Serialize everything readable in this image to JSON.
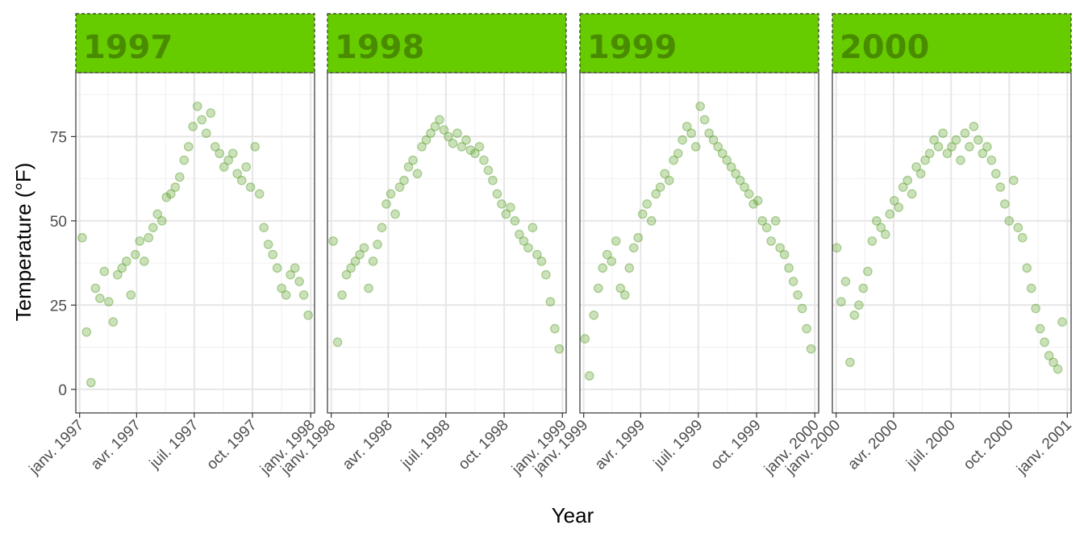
{
  "chart_data": {
    "type": "scatter",
    "facets": [
      "1997",
      "1998",
      "1999",
      "2000"
    ],
    "xlabel": "Year",
    "ylabel": "Temperature (°F)",
    "ylim": [
      -7,
      94
    ],
    "y_ticks": [
      0,
      25,
      50,
      75
    ],
    "x_tick_labels": [
      [
        "janv. 1997",
        "avr. 1997",
        "juil. 1997",
        "oct. 1997",
        "janv. 1998"
      ],
      [
        "janv. 1998",
        "avr. 1998",
        "juil. 1998",
        "oct. 1998",
        "janv. 1999"
      ],
      [
        "janv. 1999",
        "avr. 1999",
        "juil. 1999",
        "oct. 1999",
        "janv. 2000"
      ],
      [
        "janv. 2000",
        "avr. 2000",
        "juil. 2000",
        "oct. 2000",
        "janv. 2001"
      ]
    ],
    "grid": true,
    "strip_color": "#66cc00",
    "strip_text_color": "#4a8c00",
    "point_color": "#4f9a1c",
    "point_alpha": 0.3,
    "series": [
      {
        "facet": "1997",
        "x": [
          "1997-01-05",
          "1997-01-12",
          "1997-01-19",
          "1997-01-26",
          "1997-02-02",
          "1997-02-09",
          "1997-02-16",
          "1997-02-23",
          "1997-03-02",
          "1997-03-09",
          "1997-03-16",
          "1997-03-23",
          "1997-03-30",
          "1997-04-06",
          "1997-04-13",
          "1997-04-20",
          "1997-04-27",
          "1997-05-04",
          "1997-05-11",
          "1997-05-18",
          "1997-05-25",
          "1997-06-01",
          "1997-06-08",
          "1997-06-15",
          "1997-06-22",
          "1997-06-29",
          "1997-07-06",
          "1997-07-13",
          "1997-07-20",
          "1997-07-27",
          "1997-08-03",
          "1997-08-10",
          "1997-08-17",
          "1997-08-24",
          "1997-08-31",
          "1997-09-07",
          "1997-09-14",
          "1997-09-21",
          "1997-09-28",
          "1997-10-05",
          "1997-10-12",
          "1997-10-19",
          "1997-10-26",
          "1997-11-02",
          "1997-11-09",
          "1997-11-16",
          "1997-11-23",
          "1997-11-30",
          "1997-12-07",
          "1997-12-14",
          "1997-12-21",
          "1997-12-28"
        ],
        "y": [
          45,
          17,
          2,
          30,
          27,
          35,
          26,
          20,
          34,
          36,
          38,
          28,
          40,
          44,
          38,
          45,
          48,
          52,
          50,
          57,
          58,
          60,
          63,
          68,
          72,
          78,
          84,
          80,
          76,
          82,
          72,
          70,
          66,
          68,
          70,
          64,
          62,
          66,
          60,
          72,
          58,
          48,
          43,
          40,
          36,
          30,
          28,
          34,
          36,
          32,
          28,
          22
        ]
      },
      {
        "facet": "1998",
        "x": [
          "1998-01-04",
          "1998-01-11",
          "1998-01-18",
          "1998-01-25",
          "1998-02-01",
          "1998-02-08",
          "1998-02-15",
          "1998-02-22",
          "1998-03-01",
          "1998-03-08",
          "1998-03-15",
          "1998-03-22",
          "1998-03-29",
          "1998-04-05",
          "1998-04-12",
          "1998-04-19",
          "1998-04-26",
          "1998-05-03",
          "1998-05-10",
          "1998-05-17",
          "1998-05-24",
          "1998-05-31",
          "1998-06-07",
          "1998-06-14",
          "1998-06-21",
          "1998-06-28",
          "1998-07-05",
          "1998-07-12",
          "1998-07-19",
          "1998-07-26",
          "1998-08-02",
          "1998-08-09",
          "1998-08-16",
          "1998-08-23",
          "1998-08-30",
          "1998-09-06",
          "1998-09-13",
          "1998-09-20",
          "1998-09-27",
          "1998-10-04",
          "1998-10-11",
          "1998-10-18",
          "1998-10-25",
          "1998-11-01",
          "1998-11-08",
          "1998-11-15",
          "1998-11-22",
          "1998-11-29",
          "1998-12-06",
          "1998-12-13",
          "1998-12-20",
          "1998-12-27"
        ],
        "y": [
          44,
          14,
          28,
          34,
          36,
          38,
          40,
          42,
          30,
          38,
          43,
          48,
          55,
          58,
          52,
          60,
          62,
          66,
          68,
          64,
          72,
          74,
          76,
          78,
          80,
          77,
          75,
          73,
          76,
          72,
          74,
          71,
          70,
          72,
          68,
          65,
          62,
          58,
          55,
          52,
          54,
          50,
          46,
          44,
          42,
          48,
          40,
          38,
          34,
          26,
          18,
          12
        ]
      },
      {
        "facet": "1999",
        "x": [
          "1999-01-03",
          "1999-01-10",
          "1999-01-17",
          "1999-01-24",
          "1999-01-31",
          "1999-02-07",
          "1999-02-14",
          "1999-02-21",
          "1999-02-28",
          "1999-03-07",
          "1999-03-14",
          "1999-03-21",
          "1999-03-28",
          "1999-04-04",
          "1999-04-11",
          "1999-04-18",
          "1999-04-25",
          "1999-05-02",
          "1999-05-09",
          "1999-05-16",
          "1999-05-23",
          "1999-05-30",
          "1999-06-06",
          "1999-06-13",
          "1999-06-20",
          "1999-06-27",
          "1999-07-04",
          "1999-07-11",
          "1999-07-18",
          "1999-07-25",
          "1999-08-01",
          "1999-08-08",
          "1999-08-15",
          "1999-08-22",
          "1999-08-29",
          "1999-09-05",
          "1999-09-12",
          "1999-09-19",
          "1999-09-26",
          "1999-10-03",
          "1999-10-10",
          "1999-10-17",
          "1999-10-24",
          "1999-10-31",
          "1999-11-07",
          "1999-11-14",
          "1999-11-21",
          "1999-11-28",
          "1999-12-05",
          "1999-12-12",
          "1999-12-19",
          "1999-12-26"
        ],
        "y": [
          15,
          4,
          22,
          30,
          36,
          40,
          38,
          44,
          30,
          28,
          36,
          42,
          45,
          52,
          55,
          50,
          58,
          60,
          64,
          62,
          68,
          70,
          74,
          78,
          76,
          72,
          84,
          80,
          76,
          74,
          72,
          70,
          68,
          66,
          64,
          62,
          60,
          58,
          55,
          56,
          50,
          48,
          44,
          50,
          42,
          40,
          36,
          32,
          28,
          24,
          18,
          12
        ]
      },
      {
        "facet": "2000",
        "x": [
          "2000-01-02",
          "2000-01-09",
          "2000-01-16",
          "2000-01-23",
          "2000-01-30",
          "2000-02-06",
          "2000-02-13",
          "2000-02-20",
          "2000-02-27",
          "2000-03-05",
          "2000-03-12",
          "2000-03-19",
          "2000-03-26",
          "2000-04-02",
          "2000-04-09",
          "2000-04-16",
          "2000-04-23",
          "2000-04-30",
          "2000-05-07",
          "2000-05-14",
          "2000-05-21",
          "2000-05-28",
          "2000-06-04",
          "2000-06-11",
          "2000-06-18",
          "2000-06-25",
          "2000-07-02",
          "2000-07-09",
          "2000-07-16",
          "2000-07-23",
          "2000-07-30",
          "2000-08-06",
          "2000-08-13",
          "2000-08-20",
          "2000-08-27",
          "2000-09-03",
          "2000-09-10",
          "2000-09-17",
          "2000-09-24",
          "2000-10-01",
          "2000-10-08",
          "2000-10-15",
          "2000-10-22",
          "2000-10-29",
          "2000-11-05",
          "2000-11-12",
          "2000-11-19",
          "2000-11-26",
          "2000-12-03",
          "2000-12-10",
          "2000-12-17",
          "2000-12-24"
        ],
        "y": [
          42,
          26,
          32,
          8,
          22,
          25,
          30,
          35,
          44,
          50,
          48,
          46,
          52,
          56,
          54,
          60,
          62,
          58,
          66,
          64,
          68,
          70,
          74,
          72,
          76,
          70,
          72,
          74,
          68,
          76,
          72,
          78,
          74,
          70,
          72,
          68,
          64,
          60,
          55,
          50,
          62,
          48,
          45,
          36,
          30,
          24,
          18,
          14,
          10,
          8,
          6,
          20
        ]
      }
    ]
  }
}
